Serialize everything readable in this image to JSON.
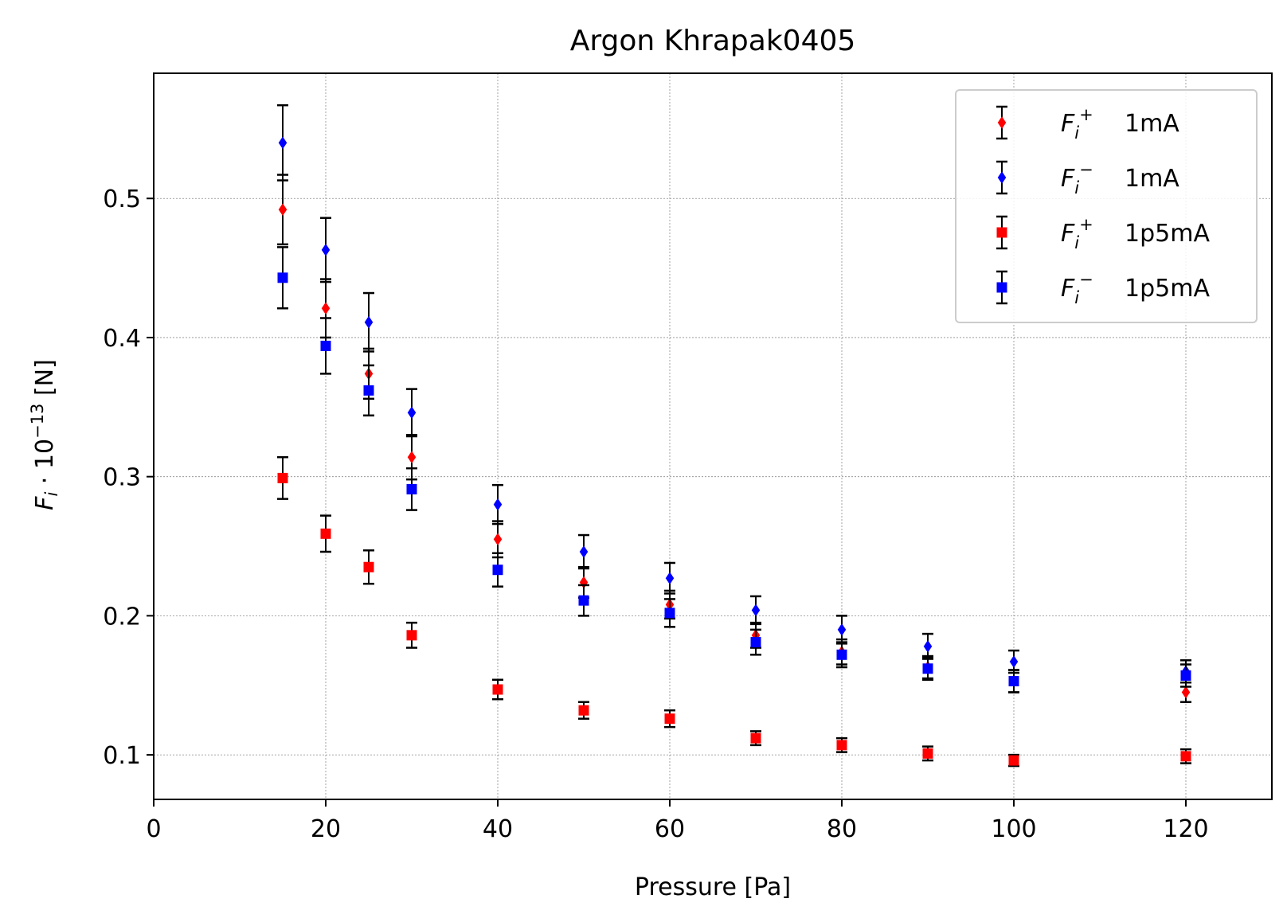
{
  "chart_data": {
    "type": "scatter",
    "title": "Argon Khrapak0405",
    "xlabel": "Pressure [Pa]",
    "ylabel": "F_i · 10^−13 [N]",
    "ylabel_parts": {
      "symbol": "F",
      "subscript": "i",
      "mid": " · 10",
      "exponent": "−13",
      "unit": " [N]"
    },
    "xlim": [
      0,
      130
    ],
    "ylim": [
      0.068,
      0.59
    ],
    "xticks": [
      0,
      20,
      40,
      60,
      80,
      100,
      120
    ],
    "yticks": [
      0.1,
      0.2,
      0.3,
      0.4,
      0.5
    ],
    "xtick_labels": [
      "0",
      "20",
      "40",
      "60",
      "80",
      "100",
      "120"
    ],
    "ytick_labels": [
      "0.1",
      "0.2",
      "0.3",
      "0.4",
      "0.5"
    ],
    "grid": true,
    "legend_position": "top-right",
    "x": [
      15,
      20,
      25,
      30,
      40,
      50,
      60,
      70,
      80,
      90,
      100,
      120
    ],
    "series": [
      {
        "name": "F_i^+ 1mA",
        "legend": {
          "symbol": "F",
          "subscript": "i",
          "superscript": "+",
          "suffix": "1mA"
        },
        "color": "#ff0000",
        "marker": "diamond",
        "y": [
          0.492,
          0.421,
          0.374,
          0.314,
          0.255,
          0.224,
          0.208,
          0.186,
          0.174,
          0.163,
          0.153,
          0.145
        ],
        "err": [
          0.025,
          0.021,
          0.018,
          0.016,
          0.013,
          0.011,
          0.01,
          0.009,
          0.009,
          0.008,
          0.008,
          0.007
        ]
      },
      {
        "name": "F_i^− 1mA",
        "legend": {
          "symbol": "F",
          "subscript": "i",
          "superscript": "−",
          "suffix": "1mA"
        },
        "color": "#0000ff",
        "marker": "diamond",
        "y": [
          0.54,
          0.463,
          0.411,
          0.346,
          0.28,
          0.246,
          0.227,
          0.204,
          0.19,
          0.178,
          0.167,
          0.16
        ],
        "err": [
          0.027,
          0.023,
          0.021,
          0.017,
          0.014,
          0.012,
          0.011,
          0.01,
          0.01,
          0.009,
          0.008,
          0.008
        ]
      },
      {
        "name": "F_i^+ 1p5mA",
        "legend": {
          "symbol": "F",
          "subscript": "i",
          "superscript": "+",
          "suffix": "1p5mA"
        },
        "color": "#ff0000",
        "marker": "square",
        "y": [
          0.299,
          0.259,
          0.235,
          0.186,
          0.147,
          0.132,
          0.126,
          0.112,
          0.107,
          0.101,
          0.096,
          0.099
        ],
        "err": [
          0.015,
          0.013,
          0.012,
          0.009,
          0.007,
          0.006,
          0.006,
          0.005,
          0.005,
          0.005,
          0.004,
          0.005
        ]
      },
      {
        "name": "F_i^− 1p5mA",
        "legend": {
          "symbol": "F",
          "subscript": "i",
          "superscript": "−",
          "suffix": "1p5mA"
        },
        "color": "#0000ff",
        "marker": "square",
        "y": [
          0.443,
          0.394,
          0.362,
          0.291,
          0.233,
          0.211,
          0.202,
          0.181,
          0.172,
          0.162,
          0.153,
          0.157
        ],
        "err": [
          0.022,
          0.02,
          0.018,
          0.015,
          0.012,
          0.011,
          0.01,
          0.009,
          0.009,
          0.008,
          0.008,
          0.008
        ]
      }
    ]
  }
}
